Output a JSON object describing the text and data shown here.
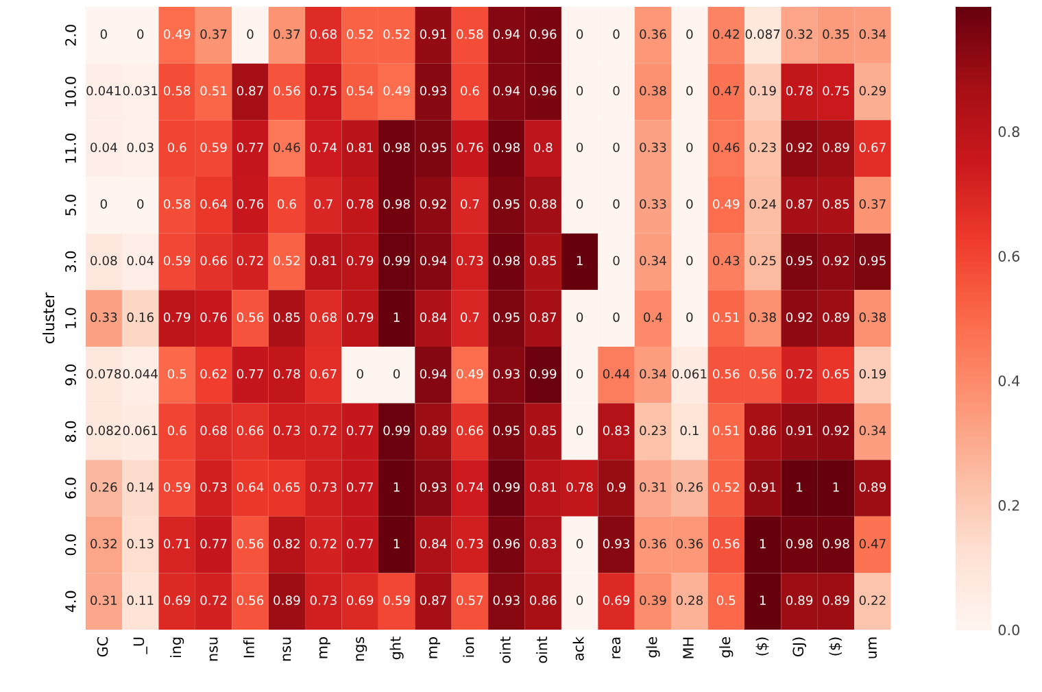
{
  "chart_data": {
    "type": "heatmap",
    "ylabel": "cluster",
    "categories": [
      "GC",
      "_U",
      "ing",
      "nsu",
      "Infl",
      "nsu",
      "mp",
      "ngs",
      "ght",
      "mp",
      "ion",
      "oint",
      "oint",
      "ack",
      "rea",
      "gle",
      "MH",
      "gle",
      "($)",
      "GJ)",
      "($)",
      "um"
    ],
    "y_categories": [
      "2.0",
      "10.0",
      "11.0",
      "5.0",
      "3.0",
      "1.0",
      "9.0",
      "8.0",
      "6.0",
      "0.0",
      "4.0"
    ],
    "cells": [
      [
        0,
        0,
        0.49,
        0.37,
        0,
        0.37,
        0.68,
        0.52,
        0.52,
        0.91,
        0.58,
        0.94,
        0.96,
        0,
        0,
        0.36,
        0,
        0.42,
        0.087,
        0.32,
        0.35,
        0.34
      ],
      [
        0.041,
        0.031,
        0.58,
        0.51,
        0.87,
        0.56,
        0.75,
        0.54,
        0.49,
        0.93,
        0.6,
        0.94,
        0.96,
        0,
        0,
        0.38,
        0,
        0.47,
        0.19,
        0.78,
        0.75,
        0.29
      ],
      [
        0.04,
        0.03,
        0.6,
        0.59,
        0.77,
        0.46,
        0.74,
        0.81,
        0.98,
        0.95,
        0.76,
        0.98,
        0.8,
        0,
        0,
        0.33,
        0,
        0.46,
        0.23,
        0.92,
        0.89,
        0.67
      ],
      [
        0,
        0,
        0.58,
        0.64,
        0.76,
        0.6,
        0.7,
        0.78,
        0.98,
        0.92,
        0.7,
        0.95,
        0.88,
        0,
        0,
        0.33,
        0,
        0.49,
        0.24,
        0.87,
        0.85,
        0.37
      ],
      [
        0.08,
        0.04,
        0.59,
        0.66,
        0.72,
        0.52,
        0.81,
        0.79,
        0.99,
        0.94,
        0.73,
        0.98,
        0.85,
        1,
        0,
        0.34,
        0,
        0.43,
        0.25,
        0.95,
        0.92,
        0.95
      ],
      [
        0.33,
        0.16,
        0.79,
        0.76,
        0.56,
        0.85,
        0.68,
        0.79,
        1,
        0.84,
        0.7,
        0.95,
        0.87,
        0,
        0,
        0.4,
        0,
        0.51,
        0.38,
        0.92,
        0.89,
        0.38
      ],
      [
        0.078,
        0.044,
        0.5,
        0.62,
        0.77,
        0.78,
        0.67,
        0,
        0,
        0.94,
        0.49,
        0.93,
        0.99,
        0,
        0.44,
        0.34,
        0.061,
        0.56,
        0.56,
        0.72,
        0.65,
        0.19
      ],
      [
        0.082,
        0.061,
        0.6,
        0.68,
        0.66,
        0.73,
        0.72,
        0.77,
        0.99,
        0.89,
        0.66,
        0.95,
        0.85,
        0,
        0.83,
        0.23,
        0.1,
        0.51,
        0.86,
        0.91,
        0.92,
        0.34
      ],
      [
        0.26,
        0.14,
        0.59,
        0.73,
        0.64,
        0.65,
        0.73,
        0.77,
        1,
        0.93,
        0.74,
        0.99,
        0.81,
        0.78,
        0.9,
        0.31,
        0.26,
        0.52,
        0.91,
        1,
        1,
        0.89
      ],
      [
        0.32,
        0.13,
        0.71,
        0.77,
        0.56,
        0.82,
        0.72,
        0.77,
        1,
        0.84,
        0.73,
        0.96,
        0.83,
        0,
        0.93,
        0.36,
        0.36,
        0.56,
        1,
        0.98,
        0.98,
        0.47
      ],
      [
        0.31,
        0.11,
        0.69,
        0.72,
        0.56,
        0.89,
        0.73,
        0.69,
        0.59,
        0.87,
        0.57,
        0.93,
        0.86,
        0,
        0.69,
        0.39,
        0.28,
        0.5,
        1,
        0.89,
        0.89,
        0.22
      ]
    ],
    "data_labels": true,
    "clim": [
      0,
      1
    ],
    "cticks": [
      {
        "value": 0,
        "label": "0.0"
      },
      {
        "value": 0.2,
        "label": "0.2"
      },
      {
        "value": 0.4,
        "label": "0.4"
      },
      {
        "value": 0.6,
        "label": "0.6"
      },
      {
        "value": 0.8,
        "label": "0.8"
      }
    ]
  }
}
